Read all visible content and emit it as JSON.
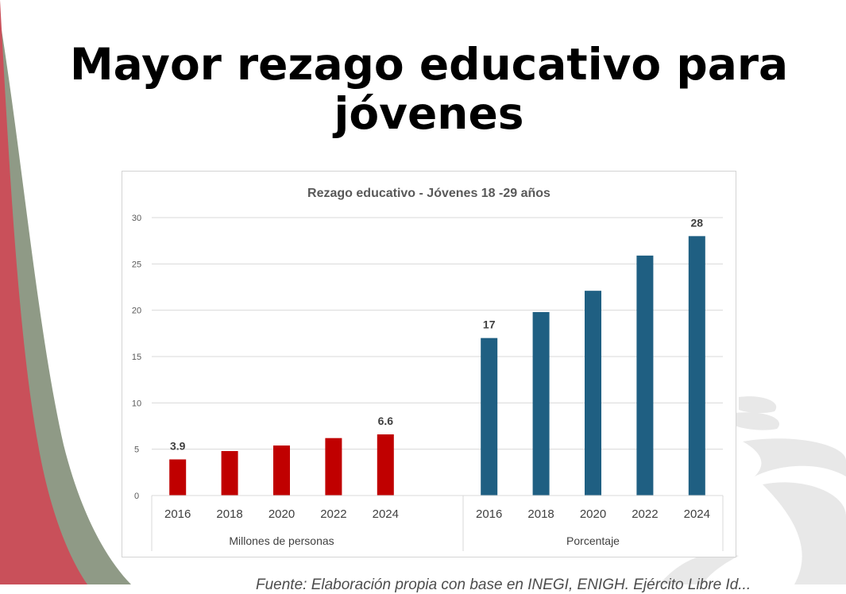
{
  "slide": {
    "title_line1": "Mayor rezago educativo para",
    "title_line2": "jóvenes",
    "source_text": "Fuente: Elaboración propia con base en INEGI, ENIGH. Ejército Libre Id..."
  },
  "colors": {
    "background": "#ffffff",
    "red_band": "#c9505a",
    "green_band": "#8f9a86",
    "watermark": "#e6e6e6",
    "series_millones": "#c00000",
    "series_porcentaje": "#1f5f82"
  },
  "chart_data": {
    "type": "bar",
    "title": "Rezago educativo  - Jóvenes 18 -29 años",
    "ylim": [
      0,
      30
    ],
    "yticks": [
      0,
      5,
      10,
      15,
      20,
      25,
      30
    ],
    "grid": true,
    "groups": [
      {
        "name": "Millones de personas",
        "categories": [
          "2016",
          "2018",
          "2020",
          "2022",
          "2024"
        ],
        "values": [
          3.9,
          4.8,
          5.4,
          6.2,
          6.6
        ],
        "data_labels": [
          "3.9",
          "",
          "",
          "",
          "6.6"
        ],
        "color": "#c00000"
      },
      {
        "name": "Porcentaje",
        "categories": [
          "2016",
          "2018",
          "2020",
          "2022",
          "2024"
        ],
        "values": [
          17,
          19.8,
          22.1,
          25.9,
          28
        ],
        "data_labels": [
          "17",
          "",
          "",
          "",
          "28"
        ],
        "color": "#1f5f82"
      }
    ]
  }
}
